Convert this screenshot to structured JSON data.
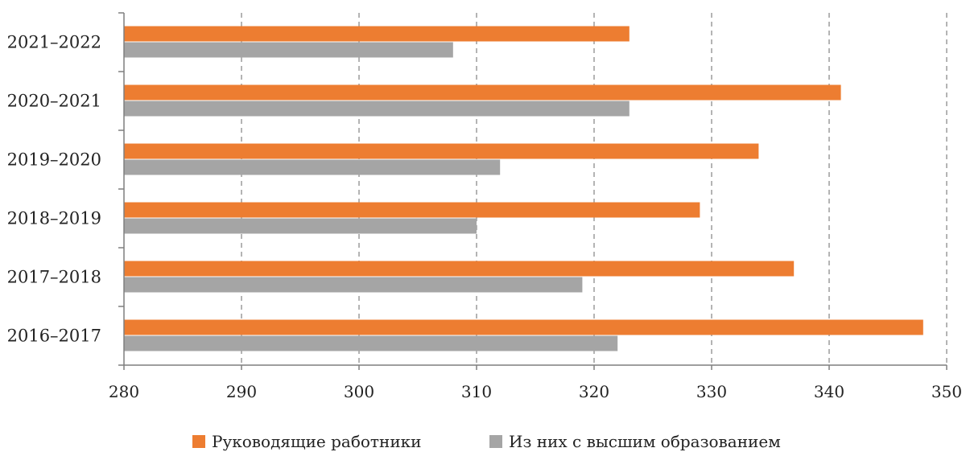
{
  "chart_data": {
    "type": "bar",
    "orientation": "horizontal",
    "categories": [
      "2016–2017",
      "2017–2018",
      "2018–2019",
      "2019–2020",
      "2020–2021",
      "2021–2022"
    ],
    "series": [
      {
        "name": "Руководящие работники",
        "color": "#ED7D31",
        "values": [
          348,
          337,
          329,
          334,
          341,
          323
        ]
      },
      {
        "name": "Из них с высшим образованием",
        "color": "#A5A5A5",
        "values": [
          322,
          319,
          310,
          312,
          323,
          308
        ]
      }
    ],
    "xlim": [
      280,
      350
    ],
    "xticks": [
      280,
      290,
      300,
      310,
      320,
      330,
      340,
      350
    ],
    "grid": "vertical-dashed",
    "legend_position": "bottom"
  }
}
